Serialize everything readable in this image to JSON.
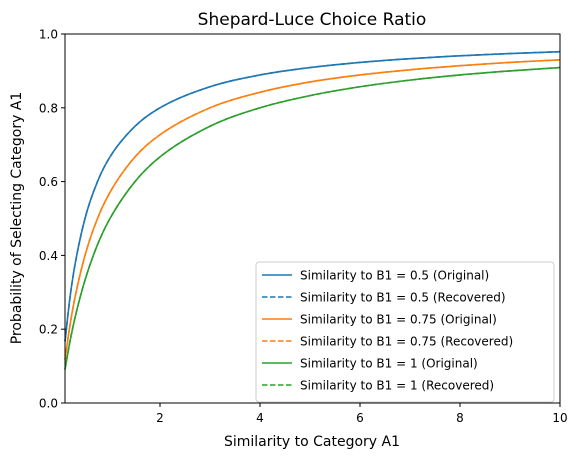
{
  "chart_data": {
    "type": "line",
    "title": "Shepard-Luce Choice Ratio",
    "xlabel": "Similarity to Category A1",
    "ylabel": "Probability of Selecting Category A1",
    "xlim": [
      0.1,
      10
    ],
    "ylim": [
      0,
      1.0
    ],
    "x_ticks": [
      2,
      4,
      6,
      8,
      10
    ],
    "y_ticks": [
      0.0,
      0.2,
      0.4,
      0.6,
      0.8,
      1.0
    ],
    "x_tick_labels": [
      "2",
      "4",
      "6",
      "8",
      "10"
    ],
    "y_tick_labels": [
      "0.0",
      "0.2",
      "0.4",
      "0.6",
      "0.8",
      "1.0"
    ],
    "grid": false,
    "legend_position": "lower-right",
    "x": [
      0.1,
      0.2,
      0.3,
      0.5,
      0.75,
      1,
      1.5,
      2,
      3,
      4,
      5,
      6,
      7,
      8,
      9,
      10
    ],
    "series": [
      {
        "name": "Similarity to B1 = 0.5 (Original)",
        "color": "#1f77b4",
        "style": "solid",
        "values": [
          0.167,
          0.286,
          0.375,
          0.5,
          0.6,
          0.667,
          0.75,
          0.8,
          0.857,
          0.889,
          0.909,
          0.923,
          0.933,
          0.941,
          0.947,
          0.952
        ]
      },
      {
        "name": "Similarity to B1 = 0.5 (Recovered)",
        "color": "#1f77b4",
        "style": "dashed",
        "values": [
          0.167,
          0.286,
          0.375,
          0.5,
          0.6,
          0.667,
          0.75,
          0.8,
          0.857,
          0.889,
          0.909,
          0.923,
          0.933,
          0.941,
          0.947,
          0.952
        ]
      },
      {
        "name": "Similarity to B1 = 0.75 (Original)",
        "color": "#ff7f0e",
        "style": "solid",
        "values": [
          0.118,
          0.211,
          0.286,
          0.4,
          0.5,
          0.571,
          0.667,
          0.727,
          0.8,
          0.842,
          0.87,
          0.889,
          0.903,
          0.914,
          0.923,
          0.93
        ]
      },
      {
        "name": "Similarity to B1 = 0.75 (Recovered)",
        "color": "#ff7f0e",
        "style": "dashed",
        "values": [
          0.118,
          0.211,
          0.286,
          0.4,
          0.5,
          0.571,
          0.667,
          0.727,
          0.8,
          0.842,
          0.87,
          0.889,
          0.903,
          0.914,
          0.923,
          0.93
        ]
      },
      {
        "name": "Similarity to B1 = 1 (Original)",
        "color": "#2ca02c",
        "style": "solid",
        "values": [
          0.091,
          0.167,
          0.231,
          0.333,
          0.429,
          0.5,
          0.6,
          0.667,
          0.75,
          0.8,
          0.833,
          0.857,
          0.875,
          0.889,
          0.9,
          0.909
        ]
      },
      {
        "name": "Similarity to B1 = 1 (Recovered)",
        "color": "#2ca02c",
        "style": "dashed",
        "values": [
          0.091,
          0.167,
          0.231,
          0.333,
          0.429,
          0.5,
          0.6,
          0.667,
          0.75,
          0.8,
          0.833,
          0.857,
          0.875,
          0.889,
          0.9,
          0.909
        ]
      }
    ]
  }
}
